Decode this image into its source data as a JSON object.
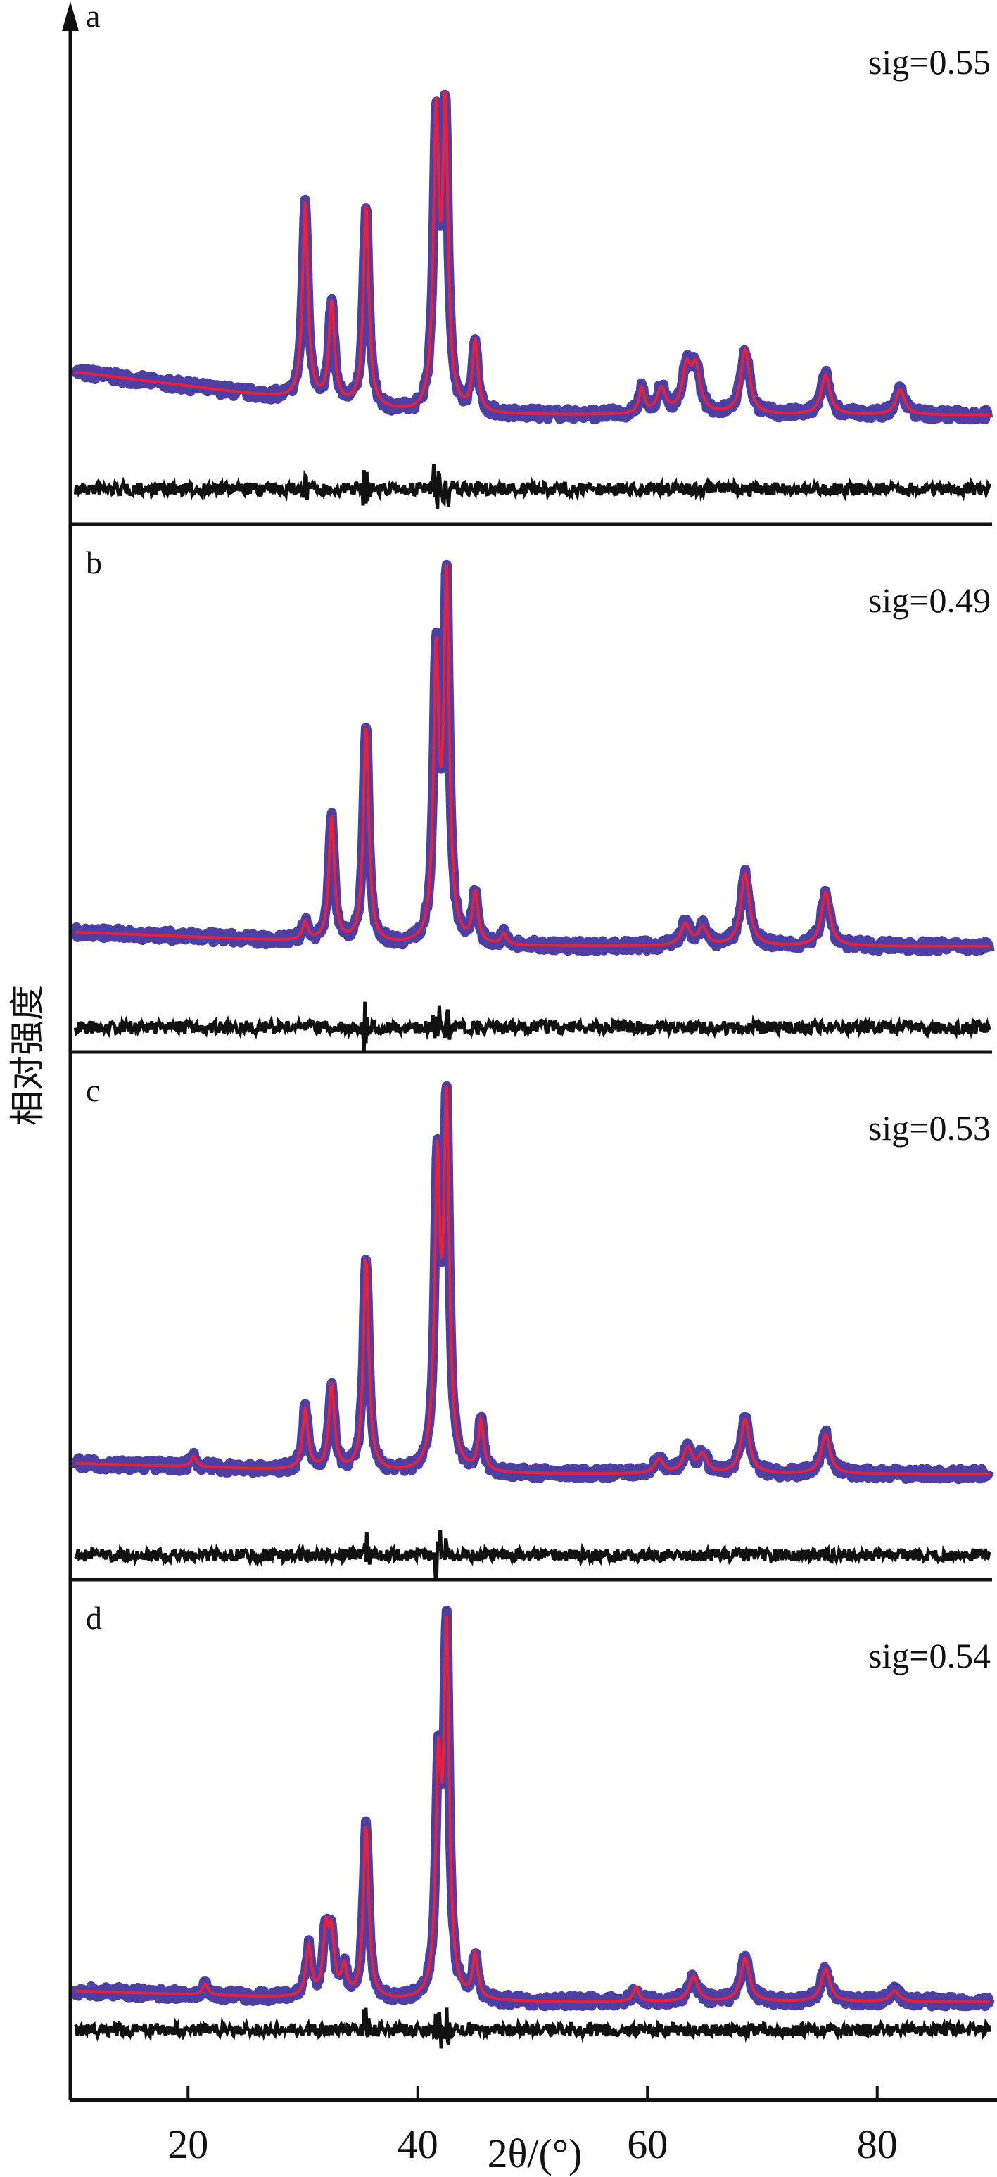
{
  "chart_data": {
    "type": "line",
    "title": "",
    "xlabel": "2θ/(°)",
    "ylabel": "相对强度",
    "xlim": [
      10,
      90
    ],
    "xticks": [
      20,
      40,
      60,
      80
    ],
    "xtick_labels": [
      "20",
      "40",
      "60",
      "80"
    ],
    "grid": false,
    "series_types": [
      "observed (blue dots)",
      "calculated (red)",
      "difference (black)"
    ],
    "colors": {
      "observed": "#3a2a9a",
      "calculated": "#e8203a",
      "difference": "#111111"
    },
    "panels": [
      {
        "label": "a",
        "sig_label": "sig=0.55",
        "background": [
          0.12,
          0.02
        ],
        "peaks": [
          [
            30.2,
            0.55
          ],
          [
            32.5,
            0.28
          ],
          [
            35.5,
            0.56
          ],
          [
            41.6,
            0.8
          ],
          [
            42.4,
            0.82
          ],
          [
            45.0,
            0.2
          ],
          [
            59.5,
            0.07
          ],
          [
            61.2,
            0.07
          ],
          [
            63.4,
            0.12
          ],
          [
            64.2,
            0.12
          ],
          [
            68.5,
            0.18
          ],
          [
            75.5,
            0.11
          ],
          [
            82.0,
            0.07
          ]
        ]
      },
      {
        "label": "b",
        "sig_label": "sig=0.49",
        "background": [
          0.04,
          0.0
        ],
        "peaks": [
          [
            30.2,
            0.05
          ],
          [
            32.5,
            0.35
          ],
          [
            35.5,
            0.6
          ],
          [
            41.6,
            0.78
          ],
          [
            42.5,
            1.0
          ],
          [
            45.0,
            0.14
          ],
          [
            47.5,
            0.03
          ],
          [
            63.3,
            0.06
          ],
          [
            64.8,
            0.05
          ],
          [
            68.5,
            0.2
          ],
          [
            75.5,
            0.15
          ]
        ]
      },
      {
        "label": "c",
        "sig_label": "sig=0.53",
        "background": [
          0.03,
          0.0
        ],
        "peaks": [
          [
            20.5,
            0.03
          ],
          [
            30.2,
            0.17
          ],
          [
            32.5,
            0.24
          ],
          [
            35.5,
            0.59
          ],
          [
            41.7,
            0.82
          ],
          [
            42.5,
            1.0
          ],
          [
            45.5,
            0.14
          ],
          [
            61.0,
            0.04
          ],
          [
            63.5,
            0.07
          ],
          [
            64.8,
            0.05
          ],
          [
            68.5,
            0.15
          ],
          [
            75.5,
            0.11
          ]
        ]
      },
      {
        "label": "d",
        "sig_label": "sig=0.54",
        "background": [
          0.03,
          0.0
        ],
        "peaks": [
          [
            21.5,
            0.03
          ],
          [
            30.5,
            0.14
          ],
          [
            32.0,
            0.18
          ],
          [
            32.5,
            0.16
          ],
          [
            33.6,
            0.08
          ],
          [
            35.5,
            0.48
          ],
          [
            41.8,
            0.6
          ],
          [
            42.5,
            1.0
          ],
          [
            45.0,
            0.12
          ],
          [
            59.0,
            0.04
          ],
          [
            64.0,
            0.07
          ],
          [
            68.5,
            0.12
          ],
          [
            75.5,
            0.09
          ],
          [
            81.5,
            0.03
          ]
        ]
      }
    ]
  }
}
